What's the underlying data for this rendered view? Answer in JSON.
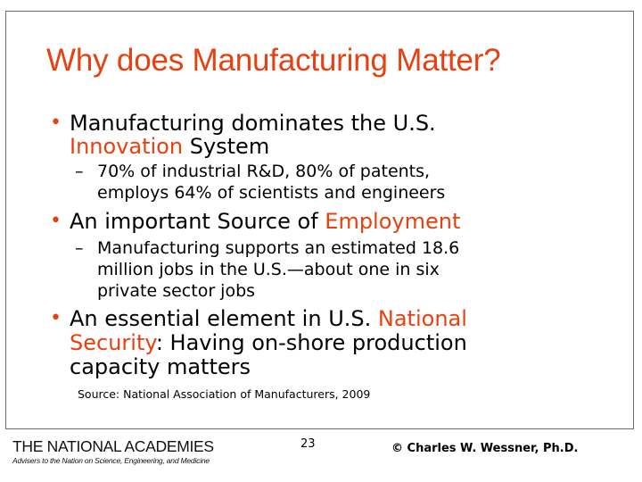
{
  "slide": {
    "title": "Why does Manufacturing Matter?",
    "bullets": [
      {
        "lines": [
          [
            "Manufacturing dominates the U.S.",
            ""
          ],
          [
            "",
            "Innovation",
            " System"
          ]
        ],
        "line1": "Manufacturing dominates the U.S.",
        "line2_red": "Innovation",
        "line2_rest": " System",
        "sub": {
          "line1": "70% of industrial R&D, 80% of patents,",
          "line2": "employs 64% of scientists and engineers"
        }
      },
      {
        "line1_pre": "An important Source of ",
        "line1_red": "Employment",
        "sub": {
          "line1": "Manufacturing supports an estimated 18.6",
          "line2": "million jobs in the U.S.—about one in six",
          "line3": "private sector jobs"
        }
      },
      {
        "line1_pre": "An essential element in U.S. ",
        "line1_red": "National",
        "line2_red": "Security",
        "line2_rest": ": Having on-shore production",
        "line3": "capacity matters"
      }
    ],
    "bullet_symbol": "•",
    "dash_symbol": "–",
    "source": "Source: National Association of Manufacturers, 2009"
  },
  "footer": {
    "logo_title": "THE NATIONAL ACADEMIES",
    "logo_subtitle": "Advisers to the Nation on Science, Engineering, and Medicine",
    "page_number": "23",
    "copyright": "© Charles W. Wessner, Ph.D."
  },
  "colors": {
    "accent": "#e8400f",
    "text": "#000000",
    "frame": "#6b6b6b"
  }
}
